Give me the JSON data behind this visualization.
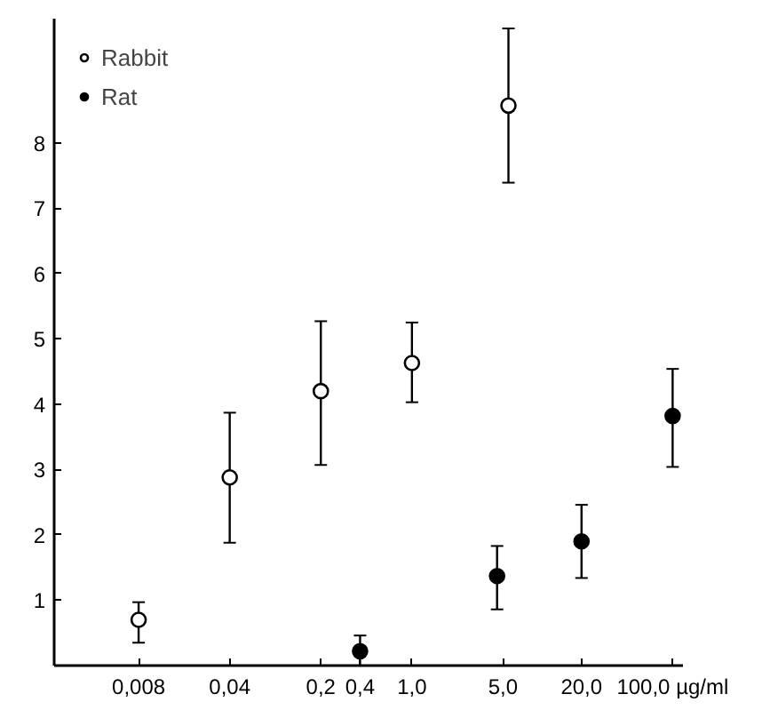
{
  "chart_data": {
    "type": "scatter",
    "marker": "circle",
    "log": "x",
    "legend": "top left",
    "grid": false,
    "xlim": [
      0.0018,
      120
    ],
    "xticks": [
      {
        "value": 0.008,
        "label": "0,008"
      },
      {
        "value": 0.04,
        "label": "0,04"
      },
      {
        "value": 0.2,
        "label": "0,2"
      },
      {
        "value": 0.4,
        "label": "0,4"
      },
      {
        "value": 1,
        "label": "1,0"
      },
      {
        "value": 5,
        "label": "5,0"
      },
      {
        "value": 20,
        "label": "20,0"
      },
      {
        "value": 100,
        "label": "100,0 µg/ml"
      }
    ],
    "ylim": [
      0,
      9.9
    ],
    "yticks": [
      {
        "value": 0,
        "label": null
      },
      1,
      2,
      3,
      4,
      5,
      6,
      7,
      8
    ],
    "series": [
      {
        "name": "Rabbit",
        "color": "#ffffff",
        "x": [
          0.008,
          0.04,
          0.2,
          1,
          5.5
        ],
        "values": [
          0.7,
          2.88,
          4.2,
          4.63,
          8.57
        ],
        "errors": [
          [
            0.35,
            0.97
          ],
          [
            1.88,
            3.87
          ],
          [
            3.07,
            5.27
          ],
          [
            4.03,
            5.25
          ],
          [
            7.39,
            9.75
          ]
        ]
      },
      {
        "name": "Rat",
        "color": "#000000",
        "x": [
          0.4,
          4.5,
          20,
          100
        ],
        "values": [
          0.22,
          1.37,
          1.9,
          3.82
        ],
        "errors": [
          [
            0.0,
            0.46
          ],
          [
            0.86,
            1.83
          ],
          [
            1.34,
            2.46
          ],
          [
            3.04,
            4.54
          ]
        ]
      }
    ]
  }
}
